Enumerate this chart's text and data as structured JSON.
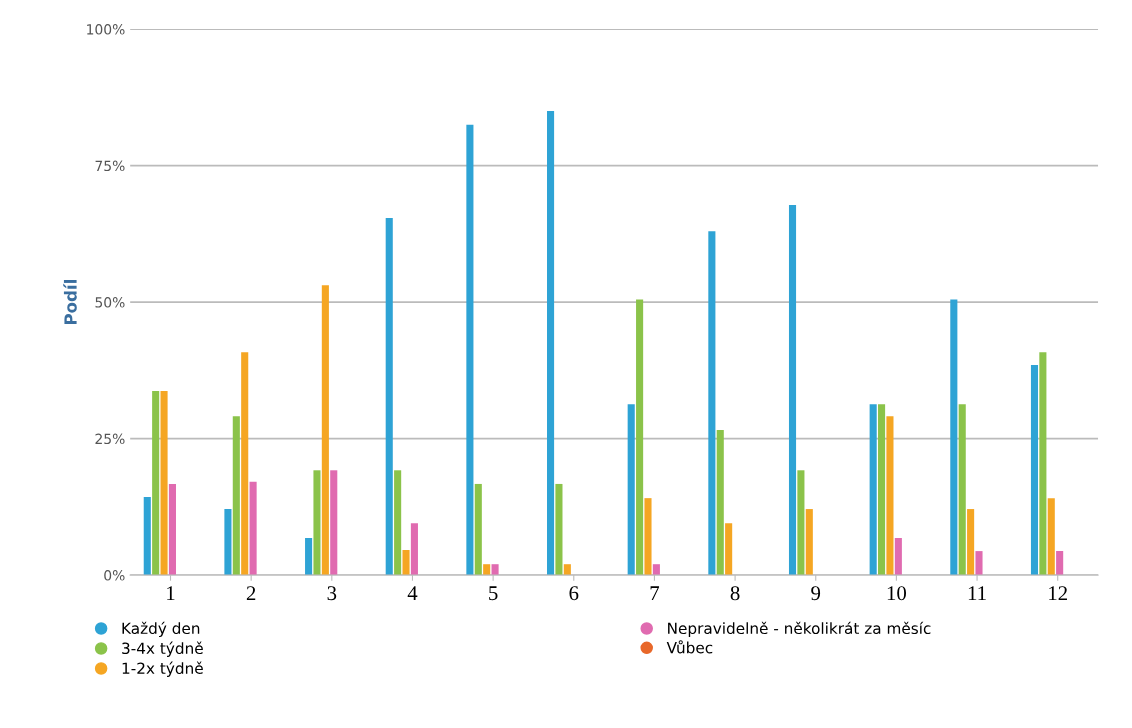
{
  "chart_data": {
    "type": "bar",
    "ylabel": "Podíl",
    "categories": [
      "1",
      "2",
      "3",
      "4",
      "5",
      "6",
      "7",
      "8",
      "9",
      "10",
      "11",
      "12"
    ],
    "series": [
      {
        "name": "Každý den",
        "color": "#2ea3d5",
        "values": [
          14.3,
          12.1,
          6.8,
          65.4,
          82.5,
          85,
          31.3,
          63,
          67.8,
          31.3,
          50.5,
          38.5
        ]
      },
      {
        "name": "3-4x týdně",
        "color": "#8bc34a",
        "values": [
          33.7,
          29.1,
          19.2,
          19.2,
          16.7,
          16.7,
          50.5,
          26.6,
          19.2,
          31.3,
          31.3,
          40.8
        ]
      },
      {
        "name": "1-2x týdně",
        "color": "#f5a623",
        "values": [
          33.7,
          40.8,
          53.1,
          4.6,
          2.0,
          2.0,
          14.1,
          9.5,
          12.1,
          29.1,
          12.1,
          14.1
        ]
      },
      {
        "name": "Nepravidelně - několikrát za měsíc",
        "color": "#e06bb0",
        "values": [
          16.7,
          17.1,
          19.2,
          9.5,
          2.0,
          0,
          2.0,
          0,
          0,
          6.8,
          4.4,
          4.4
        ]
      },
      {
        "name": "Vůbec",
        "color": "#e8682a",
        "values": [
          0,
          0,
          0,
          0,
          0,
          0,
          0,
          0,
          0,
          0,
          0,
          0
        ]
      }
    ],
    "ylim": [
      0,
      100
    ],
    "yticks": [
      {
        "value": 0,
        "label": "0%"
      },
      {
        "value": 25,
        "label": "25%"
      },
      {
        "value": 50,
        "label": "50%"
      },
      {
        "value": 75,
        "label": "75%"
      },
      {
        "value": 100,
        "label": "100%"
      }
    ],
    "grid": "y",
    "legend": "bottom"
  }
}
